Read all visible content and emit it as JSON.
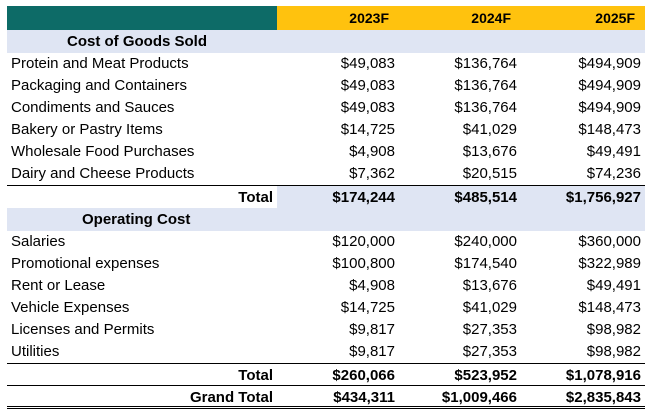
{
  "header": {
    "years": [
      "2023F",
      "2024F",
      "2025F"
    ]
  },
  "cogs": {
    "title": "Cost of Goods Sold",
    "items": [
      {
        "label": "Protein and Meat Products",
        "values": [
          "$49,083",
          "$136,764",
          "$494,909"
        ]
      },
      {
        "label": "Packaging and Containers",
        "values": [
          "$49,083",
          "$136,764",
          "$494,909"
        ]
      },
      {
        "label": "Condiments and Sauces",
        "values": [
          "$49,083",
          "$136,764",
          "$494,909"
        ]
      },
      {
        "label": "Bakery or Pastry Items",
        "values": [
          "$14,725",
          "$41,029",
          "$148,473"
        ]
      },
      {
        "label": "Wholesale Food Purchases",
        "values": [
          "$4,908",
          "$13,676",
          "$49,491"
        ]
      },
      {
        "label": "Dairy and Cheese Products",
        "values": [
          "$7,362",
          "$20,515",
          "$74,236"
        ]
      }
    ],
    "total": {
      "label": "Total",
      "values": [
        "$174,244",
        "$485,514",
        "$1,756,927"
      ]
    }
  },
  "opex": {
    "title": "Operating Cost",
    "items": [
      {
        "label": "Salaries",
        "values": [
          "$120,000",
          "$240,000",
          "$360,000"
        ]
      },
      {
        "label": "Promotional expenses",
        "values": [
          "$100,800",
          "$174,540",
          "$322,989"
        ]
      },
      {
        "label": "Rent or Lease",
        "values": [
          "$4,908",
          "$13,676",
          "$49,491"
        ]
      },
      {
        "label": "Vehicle Expenses",
        "values": [
          "$14,725",
          "$41,029",
          "$148,473"
        ]
      },
      {
        "label": "Licenses and Permits",
        "values": [
          "$9,817",
          "$27,353",
          "$98,982"
        ]
      },
      {
        "label": "Utilities",
        "values": [
          "$9,817",
          "$27,353",
          "$98,982"
        ]
      }
    ],
    "total": {
      "label": "Total",
      "values": [
        "$260,066",
        "$523,952",
        "$1,078,916"
      ]
    }
  },
  "grand_total": {
    "label": "Grand Total",
    "values": [
      "$434,311",
      "$1,009,466",
      "$2,835,843"
    ]
  }
}
